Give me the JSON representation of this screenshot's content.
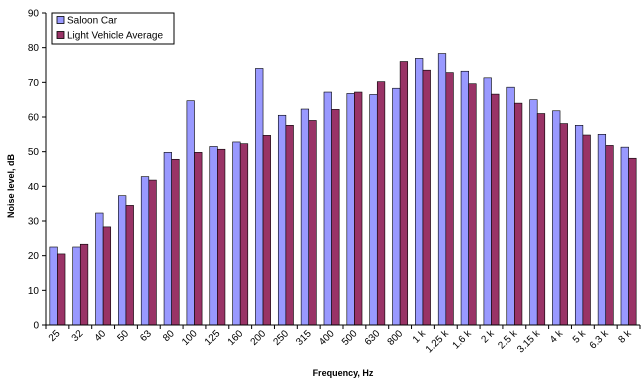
{
  "chart_data": {
    "type": "bar",
    "title": "",
    "xlabel": "Frequency, Hz",
    "ylabel": "Noise level, dB",
    "ylim": [
      0,
      90
    ],
    "yticks": [
      0,
      10,
      20,
      30,
      40,
      50,
      60,
      70,
      80,
      90
    ],
    "grid": false,
    "legend_position": "top-left",
    "categories": [
      "25",
      "32",
      "40",
      "50",
      "63",
      "80",
      "100",
      "125",
      "160",
      "200",
      "250",
      "315",
      "400",
      "500",
      "630",
      "800",
      "1 k",
      "1.25 k",
      "1.6 k",
      "2 k",
      "2.5 k",
      "3.15 k",
      "4 k",
      "5 k",
      "6.3 k",
      "8 k"
    ],
    "series": [
      {
        "name": "Saloon Car",
        "color": "#9999ff",
        "values": [
          22.5,
          22.5,
          32.3,
          37.3,
          42.8,
          49.8,
          64.7,
          51.5,
          52.8,
          74.0,
          60.5,
          62.3,
          67.2,
          66.8,
          66.5,
          68.3,
          76.9,
          78.3,
          73.2,
          71.3,
          68.6,
          65.0,
          61.8,
          57.6,
          55.0,
          51.3
        ]
      },
      {
        "name": "Light Vehicle Average",
        "color": "#993366",
        "values": [
          20.5,
          23.3,
          28.3,
          34.5,
          41.8,
          47.8,
          49.8,
          50.7,
          52.3,
          54.7,
          57.6,
          59.0,
          62.2,
          67.2,
          70.2,
          76.0,
          73.5,
          72.8,
          69.6,
          66.6,
          64.0,
          61.0,
          58.1,
          54.8,
          51.8,
          48.1
        ]
      }
    ]
  }
}
